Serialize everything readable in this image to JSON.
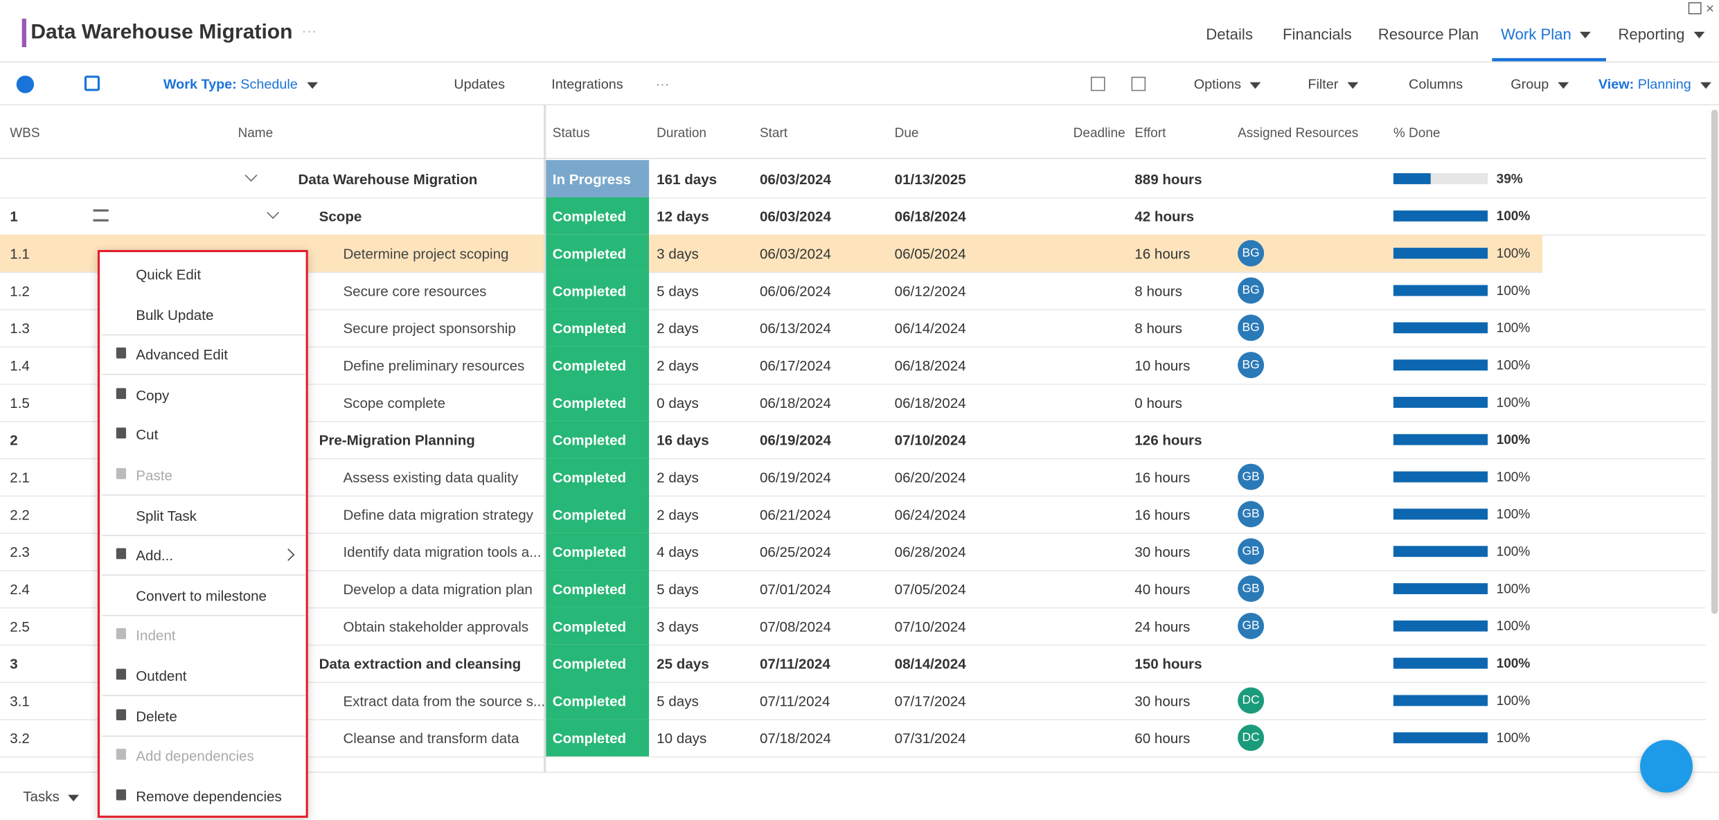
{
  "header": {
    "title": "Data Warehouse Migration",
    "tabs": [
      "Details",
      "Financials",
      "Resource Plan",
      "Work Plan",
      "Reporting"
    ],
    "active_tab": 3
  },
  "toolbar": {
    "work_type_label": "Work Type:",
    "work_type": "Schedule",
    "updates": "Updates",
    "integrations": "Integrations",
    "options": "Options",
    "filter": "Filter",
    "columns": "Columns",
    "group": "Group",
    "view_label": "View:",
    "view": "Planning"
  },
  "table": {
    "columns": [
      "WBS",
      "Name",
      "Status",
      "Duration",
      "Start",
      "Due",
      "Deadline",
      "Effort",
      "Assigned Resources",
      "% Done"
    ],
    "rows": [
      {
        "wbs": "",
        "level": 0,
        "name": "Data Warehouse Migration",
        "status": "In Progress",
        "duration": "161 days",
        "start": "06/03/2024",
        "due": "01/13/2025",
        "effort": "889 hours",
        "resource": "",
        "done": 39,
        "done_label": "39%"
      },
      {
        "wbs": "1",
        "level": 1,
        "name": "Scope",
        "status": "Completed",
        "duration": "12 days",
        "start": "06/03/2024",
        "due": "06/18/2024",
        "effort": "42 hours",
        "resource": "",
        "done": 100,
        "done_label": "100%"
      },
      {
        "wbs": "1.1",
        "level": 2,
        "name": "Determine project scoping",
        "status": "Completed",
        "duration": "3 days",
        "start": "06/03/2024",
        "due": "06/05/2024",
        "effort": "16 hours",
        "resource": "BG",
        "done": 100,
        "done_label": "100%"
      },
      {
        "wbs": "1.2",
        "level": 2,
        "name": "Secure core resources",
        "status": "Completed",
        "duration": "5 days",
        "start": "06/06/2024",
        "due": "06/12/2024",
        "effort": "8 hours",
        "resource": "BG",
        "done": 100,
        "done_label": "100%"
      },
      {
        "wbs": "1.3",
        "level": 2,
        "name": "Secure project sponsorship",
        "status": "Completed",
        "duration": "2 days",
        "start": "06/13/2024",
        "due": "06/14/2024",
        "effort": "8 hours",
        "resource": "BG",
        "done": 100,
        "done_label": "100%"
      },
      {
        "wbs": "1.4",
        "level": 2,
        "name": "Define preliminary resources",
        "status": "Completed",
        "duration": "2 days",
        "start": "06/17/2024",
        "due": "06/18/2024",
        "effort": "10 hours",
        "resource": "BG",
        "done": 100,
        "done_label": "100%"
      },
      {
        "wbs": "1.5",
        "level": 2,
        "name": "Scope complete",
        "status": "Completed",
        "duration": "0 days",
        "start": "06/18/2024",
        "due": "06/18/2024",
        "effort": "0 hours",
        "resource": "",
        "done": 100,
        "done_label": "100%"
      },
      {
        "wbs": "2",
        "level": 1,
        "name": "Pre-Migration Planning",
        "status": "Completed",
        "duration": "16 days",
        "start": "06/19/2024",
        "due": "07/10/2024",
        "effort": "126 hours",
        "resource": "",
        "done": 100,
        "done_label": "100%"
      },
      {
        "wbs": "2.1",
        "level": 2,
        "name": "Assess existing data quality",
        "status": "Completed",
        "duration": "2 days",
        "start": "06/19/2024",
        "due": "06/20/2024",
        "effort": "16 hours",
        "resource": "GB",
        "done": 100,
        "done_label": "100%"
      },
      {
        "wbs": "2.2",
        "level": 2,
        "name": "Define data migration strategy",
        "status": "Completed",
        "duration": "2 days",
        "start": "06/21/2024",
        "due": "06/24/2024",
        "effort": "16 hours",
        "resource": "GB",
        "done": 100,
        "done_label": "100%"
      },
      {
        "wbs": "2.3",
        "level": 2,
        "name": "Identify data migration tools a...",
        "status": "Completed",
        "duration": "4 days",
        "start": "06/25/2024",
        "due": "06/28/2024",
        "effort": "30 hours",
        "resource": "GB",
        "done": 100,
        "done_label": "100%"
      },
      {
        "wbs": "2.4",
        "level": 2,
        "name": "Develop a data migration plan",
        "status": "Completed",
        "duration": "5 days",
        "start": "07/01/2024",
        "due": "07/05/2024",
        "effort": "40 hours",
        "resource": "GB",
        "done": 100,
        "done_label": "100%"
      },
      {
        "wbs": "2.5",
        "level": 2,
        "name": "Obtain stakeholder approvals",
        "status": "Completed",
        "duration": "3 days",
        "start": "07/08/2024",
        "due": "07/10/2024",
        "effort": "24 hours",
        "resource": "GB",
        "done": 100,
        "done_label": "100%"
      },
      {
        "wbs": "3",
        "level": 1,
        "name": "Data extraction and cleansing",
        "status": "Completed",
        "duration": "25 days",
        "start": "07/11/2024",
        "due": "08/14/2024",
        "effort": "150 hours",
        "resource": "",
        "done": 100,
        "done_label": "100%"
      },
      {
        "wbs": "3.1",
        "level": 2,
        "name": "Extract data from the source s...",
        "status": "Completed",
        "duration": "5 days",
        "start": "07/11/2024",
        "due": "07/17/2024",
        "effort": "30 hours",
        "resource": "DC",
        "done": 100,
        "done_label": "100%"
      },
      {
        "wbs": "3.2",
        "level": 2,
        "name": "Cleanse and transform data",
        "status": "Completed",
        "duration": "10 days",
        "start": "07/18/2024",
        "due": "07/31/2024",
        "effort": "60 hours",
        "resource": "DC",
        "done": 100,
        "done_label": "100%"
      }
    ]
  },
  "context_menu": {
    "items": [
      {
        "label": "Quick Edit",
        "enabled": true
      },
      {
        "label": "Bulk Update",
        "enabled": true
      },
      {
        "label": "Advanced Edit",
        "enabled": true
      },
      {
        "label": "Copy",
        "enabled": true
      },
      {
        "label": "Cut",
        "enabled": true
      },
      {
        "label": "Paste",
        "enabled": false
      },
      {
        "label": "Split Task",
        "enabled": true
      },
      {
        "label": "Add...",
        "enabled": true
      },
      {
        "label": "Convert to milestone",
        "enabled": true
      },
      {
        "label": "Indent",
        "enabled": false
      },
      {
        "label": "Outdent",
        "enabled": true
      },
      {
        "label": "Delete",
        "enabled": true
      },
      {
        "label": "Add dependencies",
        "enabled": false
      },
      {
        "label": "Remove dependencies",
        "enabled": true
      }
    ]
  },
  "footer": {
    "tab": "Tasks"
  }
}
